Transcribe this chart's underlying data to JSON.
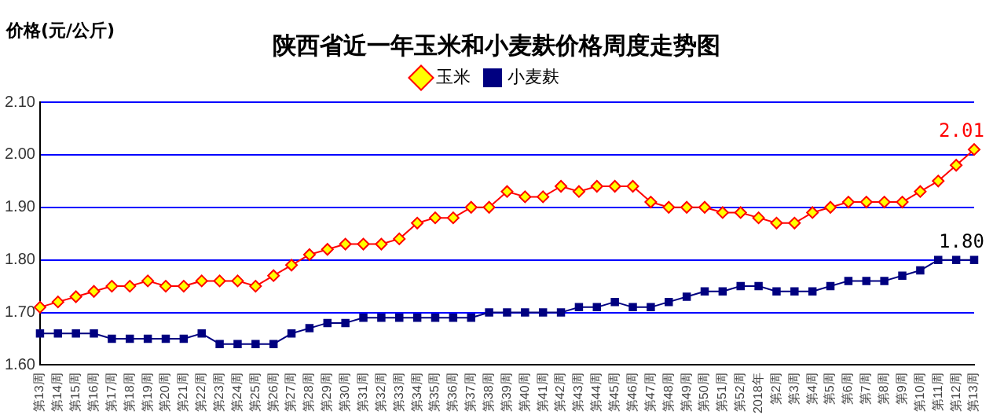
{
  "chart_data": {
    "type": "line",
    "title": "陕西省近一年玉米和小麦麸价格周度走势图",
    "ylabel": "价格(元/公斤)",
    "categories": [
      "第13周",
      "第14周",
      "第15周",
      "第16周",
      "第17周",
      "第18周",
      "第19周",
      "第20周",
      "第21周",
      "第22周",
      "第23周",
      "第24周",
      "第25周",
      "第26周",
      "第27周",
      "第28周",
      "第29周",
      "第30周",
      "第31周",
      "第32周",
      "第33周",
      "第34周",
      "第35周",
      "第36周",
      "第37周",
      "第38周",
      "第39周",
      "第40周",
      "第41周",
      "第42周",
      "第43周",
      "第44周",
      "第45周",
      "第46周",
      "第47周",
      "第48周",
      "第49周",
      "第50周",
      "第51周",
      "第52周",
      "2018年",
      "第2周",
      "第3周",
      "第4周",
      "第5周",
      "第6周",
      "第7周",
      "第8周",
      "第9周",
      "第10周",
      "第11周",
      "第12周",
      "第13周"
    ],
    "series": [
      {
        "name": "玉米",
        "color": "#ff0000",
        "marker": "diamond",
        "values": [
          1.71,
          1.72,
          1.73,
          1.74,
          1.75,
          1.75,
          1.76,
          1.75,
          1.75,
          1.76,
          1.76,
          1.76,
          1.75,
          1.77,
          1.79,
          1.81,
          1.82,
          1.83,
          1.83,
          1.83,
          1.84,
          1.87,
          1.88,
          1.88,
          1.9,
          1.9,
          1.93,
          1.92,
          1.92,
          1.94,
          1.93,
          1.94,
          1.94,
          1.94,
          1.91,
          1.9,
          1.9,
          1.9,
          1.89,
          1.89,
          1.88,
          1.87,
          1.87,
          1.89,
          1.9,
          1.91,
          1.91,
          1.91,
          1.91,
          1.93,
          1.95,
          1.98,
          2.01
        ],
        "value_labels": [
          null,
          null,
          null,
          null,
          null,
          null,
          null,
          null,
          null,
          null,
          null,
          null,
          null,
          null,
          null,
          null,
          null,
          null,
          null,
          null,
          null,
          null,
          null,
          null,
          null,
          null,
          null,
          null,
          null,
          null,
          null,
          null,
          null,
          null,
          null,
          null,
          null,
          null,
          null,
          null,
          null,
          null,
          null,
          null,
          null,
          null,
          null,
          null,
          null,
          null,
          null,
          null,
          "2.01"
        ]
      },
      {
        "name": "小麦麸",
        "color": "#000080",
        "marker": "square",
        "values": [
          1.66,
          1.66,
          1.66,
          1.66,
          1.65,
          1.65,
          1.65,
          1.65,
          1.65,
          1.66,
          1.64,
          1.64,
          1.64,
          1.64,
          1.66,
          1.67,
          1.68,
          1.68,
          1.69,
          1.69,
          1.69,
          1.69,
          1.69,
          1.69,
          1.69,
          1.7,
          1.7,
          1.7,
          1.7,
          1.7,
          1.71,
          1.71,
          1.72,
          1.71,
          1.71,
          1.72,
          1.73,
          1.74,
          1.74,
          1.75,
          1.75,
          1.74,
          1.74,
          1.74,
          1.75,
          1.76,
          1.76,
          1.76,
          1.77,
          1.78,
          1.8,
          1.8,
          1.8
        ],
        "value_labels": [
          null,
          null,
          null,
          null,
          null,
          null,
          null,
          null,
          null,
          null,
          null,
          null,
          null,
          null,
          null,
          null,
          null,
          null,
          null,
          null,
          null,
          null,
          null,
          null,
          null,
          null,
          null,
          null,
          null,
          null,
          null,
          null,
          null,
          null,
          null,
          null,
          null,
          null,
          null,
          null,
          null,
          null,
          null,
          null,
          null,
          null,
          null,
          null,
          null,
          null,
          null,
          null,
          "1.80"
        ]
      }
    ],
    "ylim": [
      1.6,
      2.1
    ],
    "yticks": [
      {
        "value": 1.6,
        "label": "1.60"
      },
      {
        "value": 1.7,
        "label": "1.70"
      },
      {
        "value": 1.8,
        "label": "1.80"
      },
      {
        "value": 1.9,
        "label": "1.90"
      },
      {
        "value": 2.0,
        "label": "2.00"
      },
      {
        "value": 2.1,
        "label": "2.10"
      }
    ],
    "grid": "y",
    "legend": "top",
    "line_style": "solid"
  }
}
